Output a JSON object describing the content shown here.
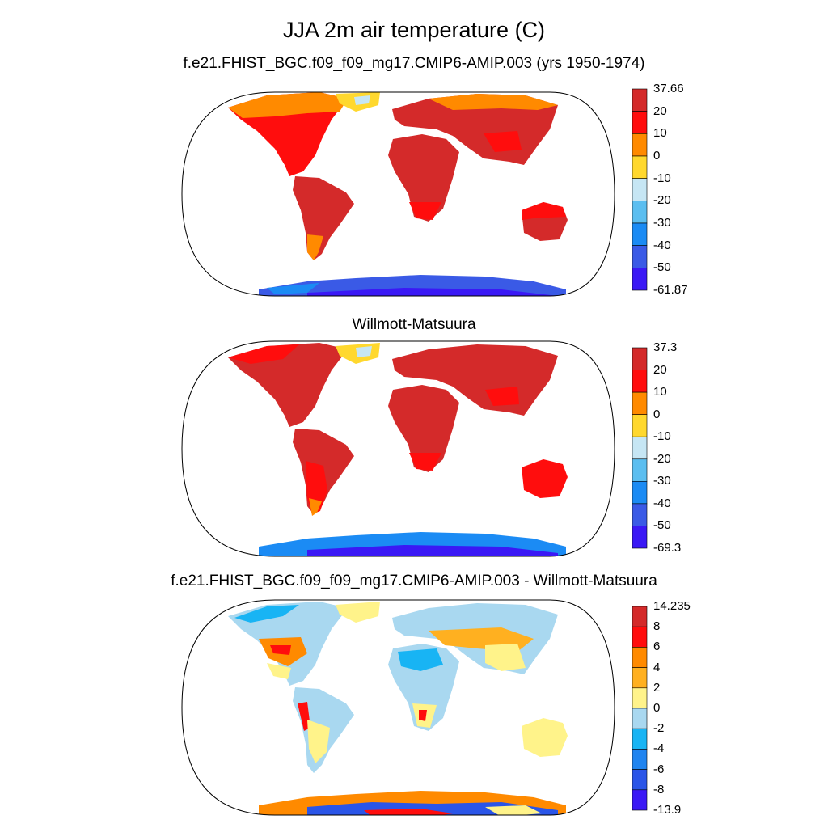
{
  "title": "JJA 2m air temperature (C)",
  "panels": [
    {
      "id": "model",
      "subtitle": "f.e21.FHIST_BGC.f09_f09_mg17.CMIP6-AMIP.003 (yrs 1950-1974)",
      "colorbar": {
        "labels": [
          "37.66",
          "20",
          "10",
          "0",
          "-10",
          "-20",
          "-30",
          "-40",
          "-50",
          "-61.87"
        ],
        "colors": [
          "#d42a2a",
          "#ff0d0d",
          "#ff8a00",
          "#ffd82e",
          "#c6e6f4",
          "#5bbef0",
          "#1b8bf4",
          "#3a5ae6",
          "#3a18f5"
        ]
      }
    },
    {
      "id": "obs",
      "subtitle": "Willmott-Matsuura",
      "colorbar": {
        "labels": [
          "37.3",
          "20",
          "10",
          "0",
          "-10",
          "-20",
          "-30",
          "-40",
          "-50",
          "-69.3"
        ],
        "colors": [
          "#d42a2a",
          "#ff0d0d",
          "#ff8a00",
          "#ffd82e",
          "#c6e6f4",
          "#5bbef0",
          "#1b8bf4",
          "#3a5ae6",
          "#3a18f5"
        ]
      }
    },
    {
      "id": "diff",
      "subtitle": "f.e21.FHIST_BGC.f09_f09_mg17.CMIP6-AMIP.003 - Willmott-Matsuura",
      "colorbar": {
        "labels": [
          "14.235",
          "8",
          "6",
          "4",
          "2",
          "0",
          "-2",
          "-4",
          "-6",
          "-8",
          "-13.9"
        ],
        "colors": [
          "#d42a2a",
          "#ff0d0d",
          "#ff8a00",
          "#ffb020",
          "#fff38a",
          "#a9d8f0",
          "#18b4f4",
          "#1f84f0",
          "#2a55e8",
          "#3a18f5"
        ]
      }
    }
  ]
}
